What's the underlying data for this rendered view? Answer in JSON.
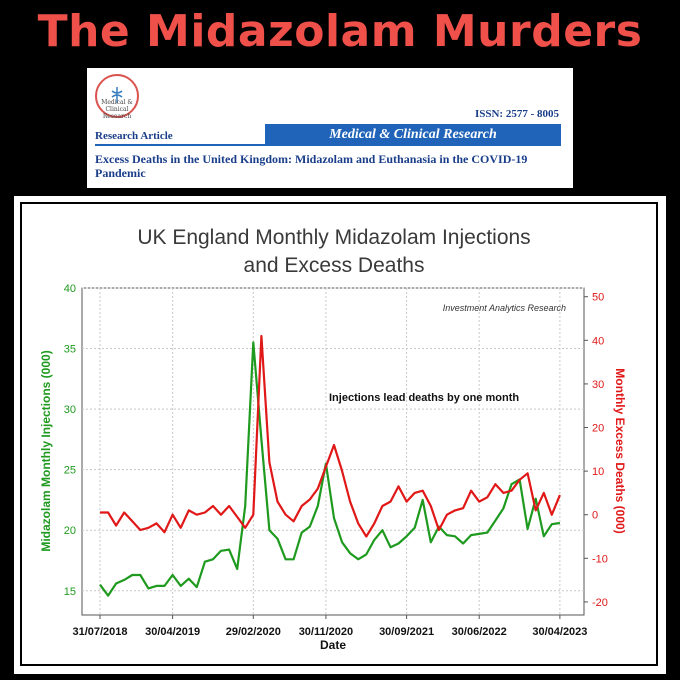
{
  "headline": "The Midazolam Murders",
  "paper": {
    "logo_text": "Medical & Clinical Research",
    "issn": "ISSN: 2577 - 8005",
    "article_type": "Research Article",
    "journal": "Medical & Clinical Research",
    "title": "Excess Deaths in the United Kingdom: Midazolam and Euthanasia in the COVID-19 Pandemic"
  },
  "colors": {
    "headline": "#f0504a",
    "green_series": "#1e9a1e",
    "red_series": "#e01818",
    "journal_blue": "#1f64b8"
  },
  "chart_data": {
    "type": "line",
    "title_line1": "UK England Monthly Midazolam Injections",
    "title_line2": "and Excess Deaths",
    "source": "Investment Analytics Research",
    "annotation": "Injections lead deaths by one month",
    "xlabel": "Date",
    "ylabel_left": "Midazolam Monthly Injections (000)",
    "ylabel_right": "Monthly Excess Deaths (000)",
    "x_ticks": [
      "31/07/2018",
      "30/04/2019",
      "29/02/2020",
      "30/11/2020",
      "30/09/2021",
      "30/06/2022",
      "30/04/2023"
    ],
    "x_tick_months": [
      0,
      9,
      19,
      28,
      38,
      47,
      57
    ],
    "ylim_left": [
      13,
      40
    ],
    "yticks_left": [
      15,
      20,
      25,
      30,
      35,
      40
    ],
    "ylim_right": [
      -23,
      52
    ],
    "yticks_right": [
      -20,
      -10,
      0,
      10,
      20,
      30,
      40,
      50
    ],
    "grid": true,
    "series": [
      {
        "name": "Midazolam Monthly Injections",
        "axis": "left",
        "color": "#1e9a1e",
        "start_month": 0,
        "values": [
          15.5,
          14.6,
          15.6,
          15.9,
          16.3,
          16.3,
          15.2,
          15.4,
          15.4,
          16.3,
          15.4,
          16.0,
          15.3,
          17.4,
          17.6,
          18.3,
          18.4,
          16.8,
          22.0,
          35.5,
          27.5,
          20.0,
          19.3,
          17.6,
          17.6,
          19.8,
          20.3,
          22.0,
          25.5,
          21.0,
          19.0,
          18.1,
          17.6,
          18.0,
          19.2,
          20.0,
          18.6,
          18.9,
          19.5,
          20.2,
          22.5,
          19.0,
          20.3,
          19.6,
          19.5,
          18.9,
          19.6,
          19.7,
          19.8,
          20.8,
          21.8,
          23.8,
          24.2,
          20.1,
          22.6,
          19.5,
          20.5,
          20.6
        ]
      },
      {
        "name": "Monthly Excess Deaths",
        "axis": "right",
        "color": "#e01818",
        "start_month": 0,
        "values": [
          0.5,
          0.5,
          -2.5,
          0.5,
          -1.5,
          -3.5,
          -3.0,
          -2.0,
          -4.0,
          0.0,
          -3.0,
          1.0,
          0.0,
          0.5,
          2.0,
          0.0,
          2.0,
          -0.5,
          -3.0,
          0.0,
          41.0,
          12.0,
          3.0,
          0.0,
          -1.5,
          2.0,
          3.5,
          6.0,
          11.0,
          16.0,
          10.0,
          3.0,
          -2.0,
          -5.0,
          -2.0,
          2.0,
          3.0,
          6.5,
          3.0,
          5.0,
          5.5,
          2.0,
          -3.5,
          0.0,
          1.0,
          1.5,
          5.5,
          3.0,
          4.0,
          7.0,
          5.0,
          5.5,
          8.0,
          9.5,
          1.0,
          5.0,
          0.0,
          4.5
        ]
      }
    ]
  }
}
